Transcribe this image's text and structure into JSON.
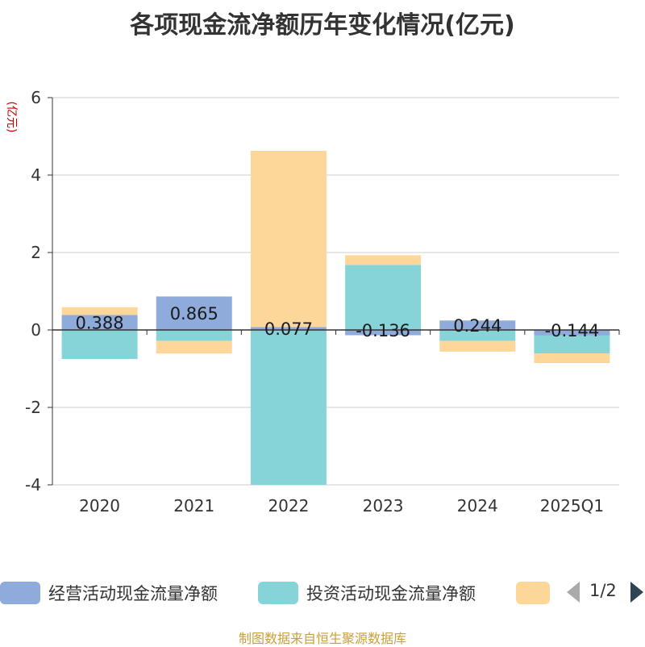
{
  "chart_data": {
    "type": "bar",
    "stacked": true,
    "title": "各项现金流净额历年变化情况(亿元)",
    "ylabel": "(亿元)",
    "ylim": [
      -4,
      6
    ],
    "yticks": [
      -4,
      -2,
      0,
      2,
      4,
      6
    ],
    "grid": true,
    "legend_position": "bottom",
    "categories": [
      "2020",
      "2021",
      "2022",
      "2023",
      "2024",
      "2025Q1"
    ],
    "series": [
      {
        "name": "经营活动现金流量净额",
        "color": "#8eabdb",
        "values": [
          0.388,
          0.865,
          0.077,
          -0.136,
          0.244,
          -0.144
        ],
        "labels": [
          "0.388",
          "0.865",
          "0.077",
          "-0.136",
          "0.244",
          "-0.144"
        ]
      },
      {
        "name": "投资活动现金流量净额",
        "color": "#86d4d8",
        "values": [
          -0.75,
          -0.28,
          -4.0,
          1.68,
          -0.28,
          -0.46
        ]
      },
      {
        "name": "",
        "color": "#fdd79a",
        "values": [
          0.2,
          -0.33,
          4.55,
          0.25,
          -0.28,
          -0.25
        ]
      }
    ]
  },
  "legend": {
    "items": [
      {
        "label": "经营活动现金流量净额",
        "color": "#8eabdb"
      },
      {
        "label": "投资活动现金流量净额",
        "color": "#86d4d8"
      },
      {
        "label": "",
        "color": "#fdd79a"
      }
    ],
    "page_indicator": "1/2"
  },
  "footer": {
    "source": "制图数据来自恒生聚源数据库"
  }
}
